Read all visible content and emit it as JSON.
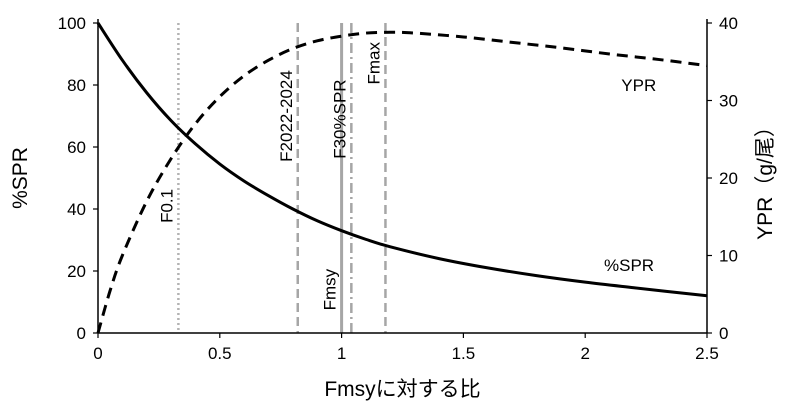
{
  "chart_data": {
    "type": "line",
    "xlabel": "Fmsyに対する比",
    "ylabel_left": "%SPR",
    "ylabel_right": "YPR（g/尾）",
    "xlim": [
      0,
      2.5
    ],
    "ylim_left": [
      0,
      100
    ],
    "ylim_right": [
      0,
      40
    ],
    "x_ticks": [
      0,
      0.5,
      1,
      1.5,
      2,
      2.5
    ],
    "x_tick_labels": [
      "0",
      "0.5",
      "1",
      "1.5",
      "2",
      "2.5"
    ],
    "y_left_ticks": [
      0,
      20,
      40,
      60,
      80,
      100
    ],
    "y_left_tick_labels": [
      "0",
      "20",
      "40",
      "60",
      "80",
      "100"
    ],
    "y_right_ticks": [
      0,
      10,
      20,
      30,
      40
    ],
    "y_right_tick_labels": [
      "0",
      "10",
      "20",
      "30",
      "40"
    ],
    "grid": false,
    "series": [
      {
        "name": "%SPR",
        "axis": "left",
        "style": "solid",
        "color": "#000000",
        "x": [
          0,
          0.1,
          0.2,
          0.3,
          0.4,
          0.5,
          0.6,
          0.7,
          0.8,
          0.9,
          1.0,
          1.1,
          1.2,
          1.4,
          1.6,
          1.8,
          2.0,
          2.2,
          2.5
        ],
        "y": [
          100,
          88,
          77.5,
          68.5,
          61,
          54.5,
          49,
          44.3,
          40,
          36.2,
          33,
          30.2,
          27.8,
          24,
          21,
          18.5,
          16.4,
          14.6,
          12
        ]
      },
      {
        "name": "YPR",
        "axis": "right",
        "style": "dashed",
        "color": "#000000",
        "x": [
          0,
          0.05,
          0.1,
          0.2,
          0.3,
          0.4,
          0.5,
          0.6,
          0.7,
          0.8,
          0.9,
          1.0,
          1.1,
          1.2,
          1.3,
          1.5,
          1.7,
          1.9,
          2.1,
          2.3,
          2.5
        ],
        "y": [
          0,
          5.5,
          10,
          17,
          22.5,
          27,
          30.5,
          33.2,
          35.2,
          36.7,
          37.7,
          38.3,
          38.7,
          38.8,
          38.7,
          38.2,
          37.5,
          36.8,
          36.0,
          35.3,
          34.5
        ]
      }
    ],
    "reference_lines": [
      {
        "label": "F0.1",
        "x": 0.33,
        "style": "dotted",
        "color": "#b3b3b3",
        "label_y": 41
      },
      {
        "label": "F2022-2024",
        "x": 0.82,
        "style": "dashed",
        "color": "#a6a6a6",
        "label_y": 70
      },
      {
        "label": "Fmsy",
        "x": 1.0,
        "style": "solid",
        "color": "#a6a6a6",
        "label_y": 14
      },
      {
        "label": "F30%SPR",
        "x": 1.04,
        "style": "dashdot",
        "color": "#a6a6a6",
        "label_y": 69
      },
      {
        "label": "Fmax",
        "x": 1.18,
        "style": "dashed",
        "color": "#a6a6a6",
        "label_y": 87
      }
    ],
    "series_labels": [
      {
        "text": "YPR",
        "x": 2.22,
        "y_left": 78
      },
      {
        "text": "%SPR",
        "x": 2.18,
        "y_left": 20
      }
    ]
  }
}
